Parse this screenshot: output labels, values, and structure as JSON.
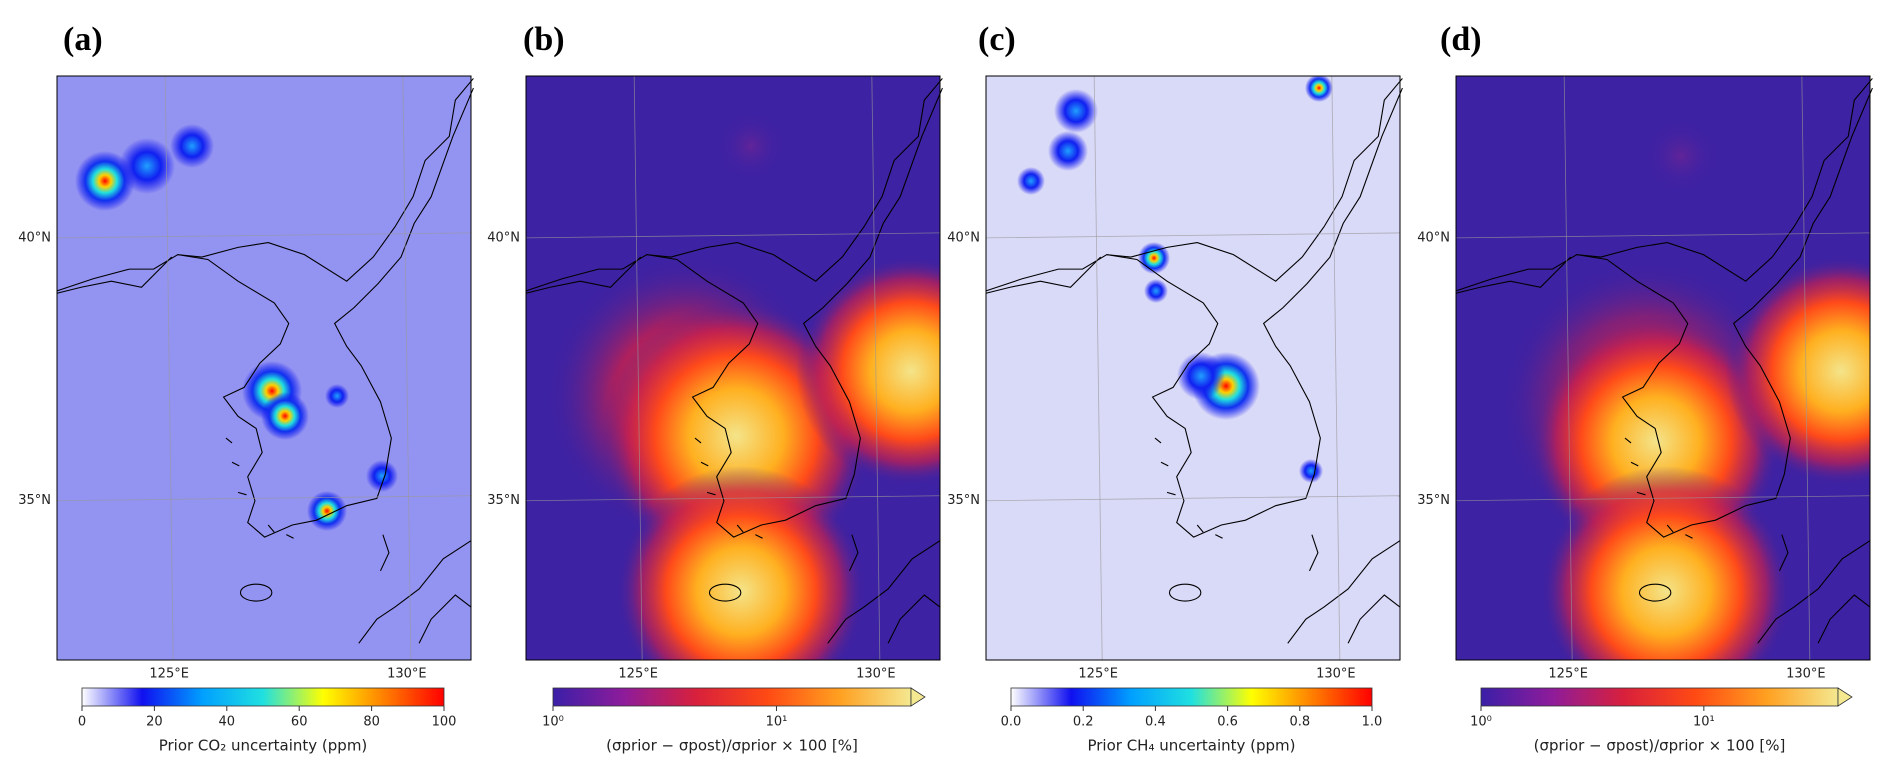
{
  "chart_data": [
    {
      "type": "map",
      "panel": "(a)",
      "background": "#9393f2",
      "xlim": [
        122.64,
        131.35
      ],
      "ylim": [
        31.97,
        43.08
      ],
      "xticks": [
        {
          "value": 125,
          "label": "125°E"
        },
        {
          "value": 130,
          "label": "130°E"
        }
      ],
      "yticks": [
        {
          "value": 40,
          "label": "40°N"
        },
        {
          "value": 35,
          "label": "35°N"
        }
      ],
      "colorbar": {
        "label": "Prior CO₂ uncertainty (ppm)",
        "clim": [
          0,
          100
        ],
        "log": false,
        "extend": false,
        "ticks": [
          0,
          20,
          40,
          60,
          80,
          100
        ],
        "colormap": [
          "#ffffff",
          "#1010f0",
          "#00a0ff",
          "#20e0e0",
          "#ffff00",
          "#ff8000",
          "#ff0000"
        ]
      }
    },
    {
      "type": "map",
      "panel": "(b)",
      "background": "#3d22a3",
      "xlim": [
        122.64,
        131.35
      ],
      "ylim": [
        31.97,
        43.08
      ],
      "xticks": [
        {
          "value": 125,
          "label": "125°E"
        },
        {
          "value": 130,
          "label": "130°E"
        }
      ],
      "yticks": [
        {
          "value": 40,
          "label": "40°N"
        },
        {
          "value": 35,
          "label": "35°N"
        }
      ],
      "colorbar": {
        "label": "(σprior − σpost)/σprior × 100 [%]",
        "clim": [
          1,
          40
        ],
        "log": true,
        "extend": true,
        "ticks": [
          {
            "value": 1,
            "label": "10⁰"
          },
          {
            "value": 10,
            "label": "10¹"
          }
        ],
        "colormap": [
          "#3b1fa8",
          "#8e1c9a",
          "#d8203c",
          "#ff4a14",
          "#ffa020",
          "#f4e890"
        ]
      }
    },
    {
      "type": "map",
      "panel": "(c)",
      "background": "#d9d9f8",
      "xlim": [
        122.64,
        131.35
      ],
      "ylim": [
        31.97,
        43.08
      ],
      "xticks": [
        {
          "value": 125,
          "label": "125°E"
        },
        {
          "value": 130,
          "label": "130°E"
        }
      ],
      "yticks": [
        {
          "value": 40,
          "label": "40°N"
        },
        {
          "value": 35,
          "label": "35°N"
        }
      ],
      "colorbar": {
        "label": "Prior CH₄ uncertainty (ppm)",
        "clim": [
          0,
          1
        ],
        "log": false,
        "extend": false,
        "ticks": [
          {
            "value": 0,
            "label": "0.0"
          },
          0.2,
          0.4,
          0.6,
          0.8,
          {
            "value": 1,
            "label": "1.0"
          }
        ],
        "colormap": [
          "#ffffff",
          "#1010f0",
          "#00a0ff",
          "#20e0e0",
          "#ffff00",
          "#ff8000",
          "#ff0000"
        ]
      }
    },
    {
      "type": "map",
      "panel": "(d)",
      "background": "#3d22a3",
      "xlim": [
        122.64,
        131.35
      ],
      "ylim": [
        31.97,
        43.08
      ],
      "xticks": [
        {
          "value": 125,
          "label": "125°E"
        },
        {
          "value": 130,
          "label": "130°E"
        }
      ],
      "yticks": [
        {
          "value": 40,
          "label": "40°N"
        },
        {
          "value": 35,
          "label": "35°N"
        }
      ],
      "colorbar": {
        "label": "(σprior − σpost)/σprior × 100 [%]",
        "clim": [
          1,
          40
        ],
        "log": true,
        "extend": true,
        "ticks": [
          {
            "value": 1,
            "label": "10⁰"
          },
          {
            "value": 10,
            "label": "10¹"
          }
        ],
        "colormap": [
          "#3b1fa8",
          "#8e1c9a",
          "#d8203c",
          "#ff4a14",
          "#ffa020",
          "#f4e890"
        ]
      }
    }
  ]
}
